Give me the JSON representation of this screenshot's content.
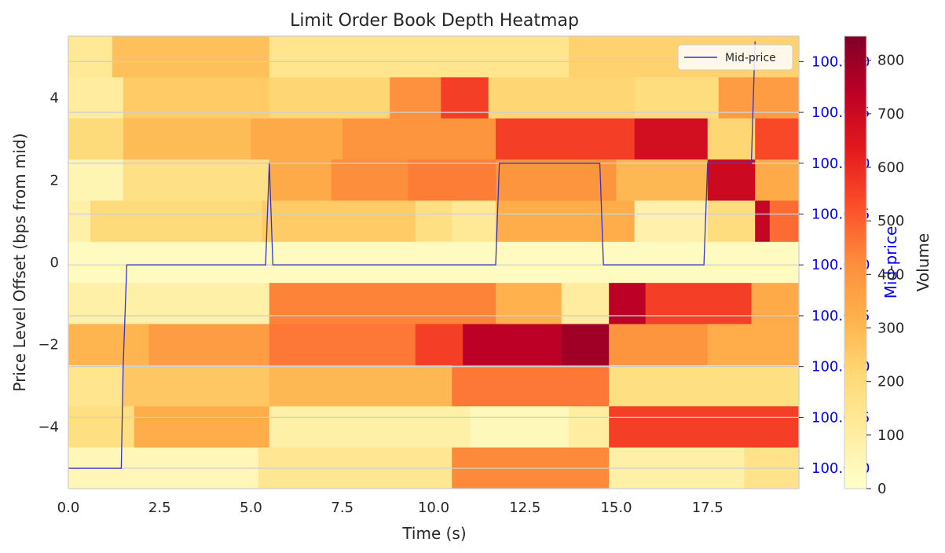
{
  "chart_data": {
    "type": "heatmap",
    "title": "Limit Order Book Depth Heatmap",
    "xlabel": "Time (s)",
    "ylabel": "Price Level Offset (bps from mid)",
    "y2label": "Mid-price",
    "colorbar_label": "Volume",
    "colormap": "YlOrRd",
    "xlim": [
      0,
      20
    ],
    "ylim": [
      -5.5,
      5.5
    ],
    "y2lim": [
      99.998,
      100.0425
    ],
    "clim": [
      0,
      845
    ],
    "xticks": [
      0,
      2.5,
      5,
      7.5,
      10,
      12.5,
      15,
      17.5
    ],
    "xtick_labels": [
      "0.0",
      "2.5",
      "5.0",
      "7.5",
      "10.0",
      "12.5",
      "15.0",
      "17.5"
    ],
    "yticks": [
      -4,
      -2,
      0,
      2,
      4
    ],
    "ytick_labels": [
      "−4",
      "−2",
      "0",
      "2",
      "4"
    ],
    "y2ticks": [
      100.0,
      100.005,
      100.01,
      100.015,
      100.02,
      100.025,
      100.03,
      100.035,
      100.04
    ],
    "y2tick_labels": [
      "100.000",
      "100.005",
      "100.010",
      "100.015",
      "100.020",
      "100.025",
      "100.030",
      "100.035",
      "100.040"
    ],
    "cbar_ticks": [
      0,
      100,
      200,
      300,
      400,
      500,
      600,
      700,
      800
    ],
    "cbar_tick_labels": [
      "0",
      "100",
      "200",
      "300",
      "400",
      "500",
      "600",
      "700",
      "800"
    ],
    "grid": true,
    "legend": {
      "position": "top-right",
      "entries": [
        "Mid-price"
      ]
    },
    "series_color": "#3333cc",
    "heatmap_rows": [
      {
        "level": 5,
        "segments": [
          [
            0,
            1.2,
            130
          ],
          [
            1.2,
            5.5,
            280
          ],
          [
            5.5,
            13.7,
            150
          ],
          [
            13.7,
            20,
            230
          ]
        ]
      },
      {
        "level": 4,
        "segments": [
          [
            0,
            1.5,
            110
          ],
          [
            1.5,
            5.5,
            250
          ],
          [
            5.5,
            8.8,
            220
          ],
          [
            8.8,
            10.2,
            410
          ],
          [
            10.2,
            11.5,
            560
          ],
          [
            11.5,
            15.5,
            220
          ],
          [
            15.5,
            17.8,
            190
          ],
          [
            17.8,
            20,
            380
          ]
        ]
      },
      {
        "level": 3,
        "segments": [
          [
            0,
            1.5,
            200
          ],
          [
            1.5,
            5.0,
            290
          ],
          [
            5.0,
            7.5,
            340
          ],
          [
            7.5,
            11.7,
            400
          ],
          [
            11.7,
            15.5,
            560
          ],
          [
            15.5,
            17.5,
            680
          ],
          [
            17.5,
            18.8,
            220
          ],
          [
            18.8,
            20,
            540
          ]
        ]
      },
      {
        "level": 2,
        "segments": [
          [
            0,
            1.5,
            60
          ],
          [
            1.5,
            5.5,
            170
          ],
          [
            5.5,
            7.2,
            340
          ],
          [
            7.2,
            9.3,
            420
          ],
          [
            9.3,
            11.7,
            450
          ],
          [
            11.7,
            15.0,
            400
          ],
          [
            15.0,
            17.5,
            300
          ],
          [
            17.5,
            18.8,
            700
          ],
          [
            18.8,
            20,
            340
          ]
        ]
      },
      {
        "level": 1,
        "segments": [
          [
            0,
            0.6,
            90
          ],
          [
            0.6,
            5.3,
            200
          ],
          [
            5.3,
            9.5,
            250
          ],
          [
            9.5,
            10.5,
            180
          ],
          [
            10.5,
            11.7,
            130
          ],
          [
            11.7,
            15.5,
            330
          ],
          [
            15.5,
            17.5,
            80
          ],
          [
            17.5,
            18.8,
            190
          ],
          [
            18.8,
            19.2,
            720
          ],
          [
            19.2,
            20,
            480
          ]
        ]
      },
      {
        "level": 0,
        "segments": [
          [
            0,
            20,
            30
          ]
        ]
      },
      {
        "level": -1,
        "segments": [
          [
            0,
            5.5,
            90
          ],
          [
            5.5,
            11.7,
            440
          ],
          [
            11.7,
            13.5,
            320
          ],
          [
            13.5,
            14.8,
            110
          ],
          [
            14.8,
            15.8,
            740
          ],
          [
            15.8,
            18.7,
            560
          ],
          [
            18.7,
            20,
            340
          ]
        ]
      },
      {
        "level": -2,
        "segments": [
          [
            0,
            2.2,
            310
          ],
          [
            2.2,
            5.5,
            380
          ],
          [
            5.5,
            9.5,
            460
          ],
          [
            9.5,
            10.8,
            560
          ],
          [
            10.8,
            13.5,
            740
          ],
          [
            13.5,
            14.8,
            790
          ],
          [
            14.8,
            17.5,
            400
          ],
          [
            17.5,
            20,
            330
          ]
        ]
      },
      {
        "level": -3,
        "segments": [
          [
            0,
            1.5,
            150
          ],
          [
            1.5,
            5.5,
            260
          ],
          [
            5.5,
            10.5,
            300
          ],
          [
            10.5,
            14.8,
            460
          ],
          [
            14.8,
            20,
            180
          ]
        ]
      },
      {
        "level": -4,
        "segments": [
          [
            0,
            1.8,
            180
          ],
          [
            1.8,
            5.5,
            330
          ],
          [
            5.5,
            11.0,
            90
          ],
          [
            11.0,
            13.7,
            40
          ],
          [
            13.7,
            14.8,
            100
          ],
          [
            14.8,
            20,
            560
          ]
        ]
      },
      {
        "level": -5,
        "segments": [
          [
            0,
            5.2,
            50
          ],
          [
            5.2,
            10.5,
            140
          ],
          [
            10.5,
            14.8,
            430
          ],
          [
            14.8,
            18.5,
            90
          ],
          [
            18.5,
            20,
            160
          ]
        ]
      }
    ],
    "mid_price": {
      "name": "Mid-price",
      "x": [
        0,
        1.45,
        1.5,
        1.6,
        5.4,
        5.5,
        5.6,
        11.7,
        11.8,
        14.55,
        14.65,
        17.4,
        17.5,
        18.7,
        18.8
      ],
      "y": [
        100.0,
        100.0,
        100.01,
        100.02,
        100.02,
        100.03,
        100.02,
        100.02,
        100.03,
        100.03,
        100.02,
        100.02,
        100.03,
        100.03,
        100.042
      ]
    }
  }
}
